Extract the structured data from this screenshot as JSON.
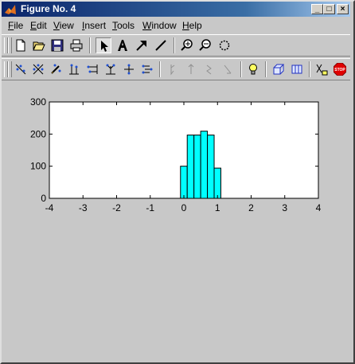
{
  "window": {
    "title": "Figure No. 4",
    "controls": {
      "minimize": "_",
      "maximize": "□",
      "close": "×"
    }
  },
  "menubar": {
    "items": [
      {
        "label": "File",
        "mnemonic": "F",
        "rest": "ile"
      },
      {
        "label": "Edit",
        "mnemonic": "E",
        "rest": "dit"
      },
      {
        "label": "View",
        "mnemonic": "V",
        "rest": "iew"
      },
      {
        "label": "Insert",
        "mnemonic": "I",
        "rest": "nsert"
      },
      {
        "label": "Tools",
        "mnemonic": "T",
        "rest": "ools"
      },
      {
        "label": "Window",
        "mnemonic": "W",
        "rest": "indow"
      },
      {
        "label": "Help",
        "mnemonic": "H",
        "rest": "elp"
      }
    ]
  },
  "toolbar1": {
    "items": [
      "new-file-icon",
      "open-folder-icon",
      "save-icon",
      "print-icon",
      "select-arrow-icon",
      "insert-text-icon",
      "insert-arrow-icon",
      "insert-line-icon",
      "zoom-in-icon",
      "zoom-out-icon",
      "rotate-3d-icon"
    ]
  },
  "toolbar2": {
    "items": [
      "edit-points-icon",
      "move-points-icon",
      "pen-points-icon",
      "align-bottom-icon",
      "align-right-icon",
      "distribute-icon",
      "align-top-icon",
      "align-center-icon",
      "disabled-tool-1-icon",
      "disabled-tool-2-icon",
      "disabled-tool-3-icon",
      "disabled-tool-4-icon",
      "lightbulb-icon",
      "box-3d-icon",
      "box-2d-icon",
      "bar-tool-icon",
      "stop-icon"
    ],
    "stop_label": "STOP"
  },
  "colors": {
    "bar_fill": "#00ffff",
    "bar_edge": "#000000",
    "plot_bg": "#ffffff",
    "figure_bg": "#c8c8c8"
  },
  "chart_data": {
    "type": "bar",
    "title": "",
    "xlabel": "",
    "ylabel": "",
    "xlim": [
      -4,
      4
    ],
    "ylim": [
      0,
      300
    ],
    "xticks": [
      -4,
      -3,
      -2,
      -1,
      0,
      1,
      2,
      3,
      4
    ],
    "yticks": [
      0,
      100,
      200,
      300
    ],
    "bin_width": 0.2,
    "bin_left_edges": [
      -0.1,
      0.1,
      0.3,
      0.5,
      0.7,
      0.9
    ],
    "values": [
      100,
      197,
      197,
      209,
      197,
      94
    ],
    "grid": false
  }
}
